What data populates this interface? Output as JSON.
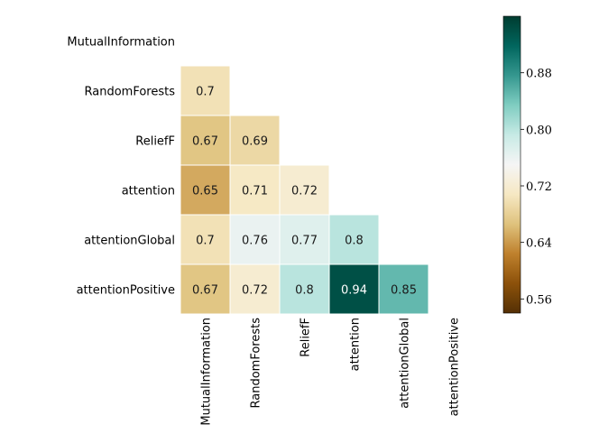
{
  "chart_data": {
    "type": "heatmap",
    "title": "",
    "labels": [
      "MutualInformation",
      "RandomForests",
      "ReliefF",
      "attention",
      "attentionGlobal",
      "attentionPositive"
    ],
    "mask": "upper-triangle-including-diagonal",
    "values": [
      [
        null,
        null,
        null,
        null,
        null,
        null
      ],
      [
        0.7,
        null,
        null,
        null,
        null,
        null
      ],
      [
        0.67,
        0.69,
        null,
        null,
        null,
        null
      ],
      [
        0.65,
        0.71,
        0.72,
        null,
        null,
        null
      ],
      [
        0.7,
        0.76,
        0.77,
        0.8,
        null,
        null
      ],
      [
        0.67,
        0.72,
        0.8,
        0.94,
        0.85,
        null
      ]
    ],
    "value_labels": [
      [
        null,
        null,
        null,
        null,
        null,
        null
      ],
      [
        "0.7",
        null,
        null,
        null,
        null,
        null
      ],
      [
        "0.67",
        "0.69",
        null,
        null,
        null,
        null
      ],
      [
        "0.65",
        "0.71",
        "0.72",
        null,
        null,
        null
      ],
      [
        "0.7",
        "0.76",
        "0.77",
        "0.8",
        null,
        null
      ],
      [
        "0.67",
        "0.72",
        "0.8",
        "0.94",
        "0.85",
        null
      ]
    ],
    "colormap": "BrBG",
    "vmin": 0.54,
    "vmax": 0.96,
    "colorbar": {
      "ticks": [
        0.56,
        0.64,
        0.72,
        0.8,
        0.88
      ],
      "tick_labels": [
        "0.56",
        "0.64",
        "0.72",
        "0.80",
        "0.88"
      ]
    }
  }
}
